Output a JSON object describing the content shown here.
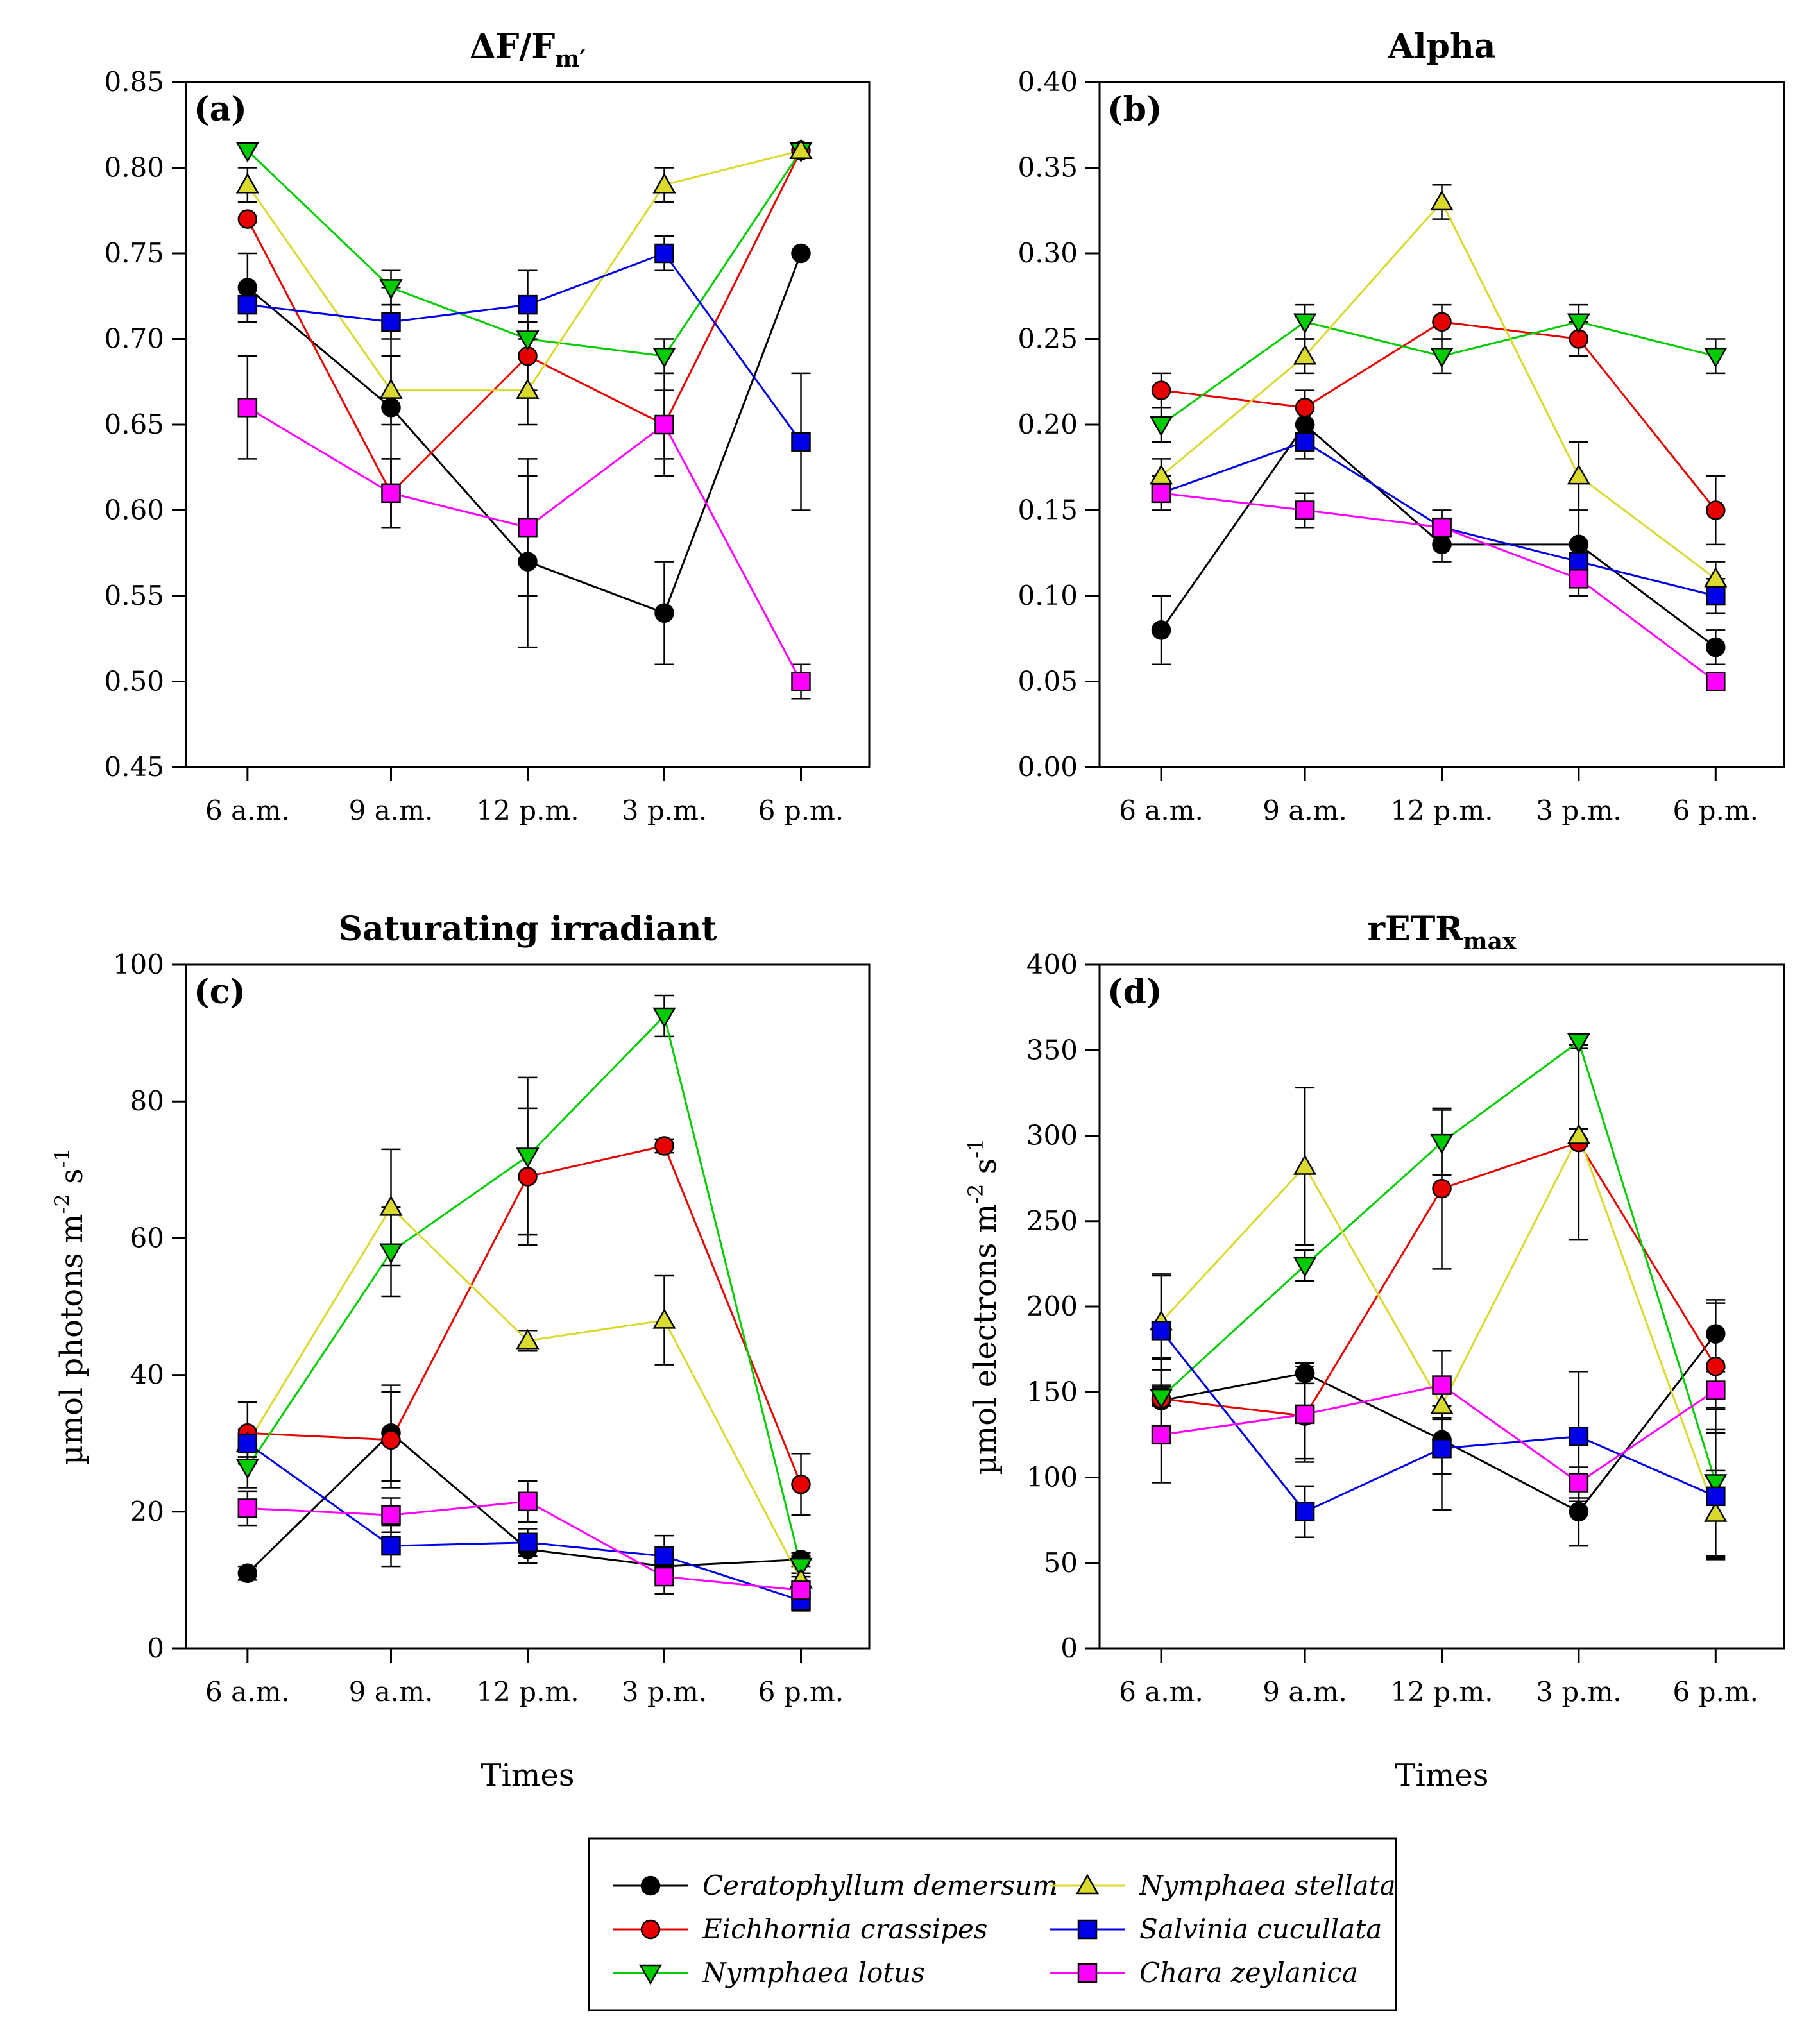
{
  "x_title": "Times",
  "times": [
    "6 a.m.",
    "9 a.m.",
    "12 p.m.",
    "3 p.m.",
    "6 p.m."
  ],
  "species": [
    {
      "name": "Ceratophyllum demersum",
      "color": "#000000",
      "marker": "circle"
    },
    {
      "name": "Eichhornia crassipes",
      "color": "#e60000",
      "marker": "circle"
    },
    {
      "name": "Nymphaea lotus",
      "color": "#00cc00",
      "marker": "triangle-down"
    },
    {
      "name": "Nymphaea stellata",
      "color": "#d9d92e",
      "marker": "triangle-up"
    },
    {
      "name": "Salvinia cucullata",
      "color": "#0000e6",
      "marker": "square"
    },
    {
      "name": "Chara zeylanica",
      "color": "#ff00ff",
      "marker": "square"
    }
  ],
  "chart_data": [
    {
      "type": "line",
      "panel": "(a)",
      "title": "ΔF/F",
      "title_sub": "m′",
      "xlabel": "",
      "ylabel": "",
      "ylabel_sup1": "",
      "ylabel_mid": "",
      "ylabel_sup2": "",
      "ylim": [
        0.45,
        0.85
      ],
      "yticks": [
        "0.45",
        "0.50",
        "0.55",
        "0.60",
        "0.65",
        "0.70",
        "0.75",
        "0.80",
        "0.85"
      ],
      "categories": [
        "6 a.m.",
        "9 a.m.",
        "12 p.m.",
        "3 p.m.",
        "6 p.m."
      ],
      "series": [
        {
          "name": "Ceratophyllum demersum",
          "values": [
            0.73,
            0.66,
            0.57,
            0.54,
            0.75
          ],
          "err": [
            0.02,
            0.07,
            0.05,
            0.03,
            0.0
          ]
        },
        {
          "name": "Eichhornia crassipes",
          "values": [
            0.77,
            0.61,
            0.69,
            0.65,
            0.81
          ],
          "err": [
            0.0,
            0.02,
            0.02,
            0.02,
            0.0
          ]
        },
        {
          "name": "Nymphaea lotus",
          "values": [
            0.81,
            0.73,
            0.7,
            0.69,
            0.81
          ],
          "err": [
            0.0,
            0.01,
            0.01,
            0.01,
            0.0
          ]
        },
        {
          "name": "Nymphaea stellata",
          "values": [
            0.79,
            0.67,
            0.67,
            0.79,
            0.81
          ],
          "err": [
            0.01,
            0.02,
            0.02,
            0.01,
            0.0
          ]
        },
        {
          "name": "Salvinia cucullata",
          "values": [
            0.72,
            0.71,
            0.72,
            0.75,
            0.64
          ],
          "err": [
            0.01,
            0.01,
            0.02,
            0.01,
            0.04
          ]
        },
        {
          "name": "Chara zeylanica",
          "values": [
            0.66,
            0.61,
            0.59,
            0.65,
            0.5
          ],
          "err": [
            0.03,
            0.02,
            0.04,
            0.03,
            0.01
          ]
        }
      ]
    },
    {
      "type": "line",
      "panel": "(b)",
      "title": "Alpha",
      "title_sub": "",
      "xlabel": "",
      "ylabel": "",
      "ylabel_sup1": "",
      "ylabel_mid": "",
      "ylabel_sup2": "",
      "ylim": [
        0.0,
        0.4
      ],
      "yticks": [
        "0.00",
        "0.05",
        "0.10",
        "0.15",
        "0.20",
        "0.25",
        "0.30",
        "0.35",
        "0.40"
      ],
      "categories": [
        "6 a.m.",
        "9 a.m.",
        "12 p.m.",
        "3 p.m.",
        "6 p.m."
      ],
      "series": [
        {
          "name": "Ceratophyllum demersum",
          "values": [
            0.08,
            0.2,
            0.13,
            0.13,
            0.07
          ],
          "err": [
            0.02,
            0.01,
            0.01,
            0.02,
            0.01
          ]
        },
        {
          "name": "Eichhornia crassipes",
          "values": [
            0.22,
            0.21,
            0.26,
            0.25,
            0.15
          ],
          "err": [
            0.01,
            0.01,
            0.01,
            0.01,
            0.02
          ]
        },
        {
          "name": "Nymphaea lotus",
          "values": [
            0.2,
            0.26,
            0.24,
            0.26,
            0.24
          ],
          "err": [
            0.01,
            0.01,
            0.01,
            0.01,
            0.01
          ]
        },
        {
          "name": "Nymphaea stellata",
          "values": [
            0.17,
            0.24,
            0.33,
            0.17,
            0.11
          ],
          "err": [
            0.01,
            0.01,
            0.01,
            0.02,
            0.01
          ]
        },
        {
          "name": "Salvinia cucullata",
          "values": [
            0.16,
            0.19,
            0.14,
            0.12,
            0.1
          ],
          "err": [
            0.01,
            0.01,
            0.01,
            0.01,
            0.01
          ]
        },
        {
          "name": "Chara zeylanica",
          "values": [
            0.16,
            0.15,
            0.14,
            0.11,
            0.05
          ],
          "err": [
            0.01,
            0.01,
            0.01,
            0.01,
            0.0
          ]
        }
      ]
    },
    {
      "type": "line",
      "panel": "(c)",
      "title": "Saturating irradiant",
      "title_sub": "",
      "xlabel": "Times",
      "ylabel": "µmol photons m",
      "ylabel_sup1": "-2",
      "ylabel_mid": " s",
      "ylabel_sup2": "-1",
      "ylim": [
        0,
        100
      ],
      "yticks": [
        "0",
        "20",
        "40",
        "60",
        "80",
        "100"
      ],
      "categories": [
        "6 a.m.",
        "9 a.m.",
        "12 p.m.",
        "3 p.m.",
        "6 p.m."
      ],
      "series": [
        {
          "name": "Ceratophyllum demersum",
          "values": [
            11,
            31.5,
            14.5,
            12,
            13
          ],
          "err": [
            1,
            7,
            2,
            2,
            1
          ]
        },
        {
          "name": "Eichhornia crassipes",
          "values": [
            31.5,
            30.5,
            69,
            73.5,
            24
          ],
          "err": [
            4.5,
            7,
            10,
            1,
            4.5
          ]
        },
        {
          "name": "Nymphaea lotus",
          "values": [
            26.5,
            58,
            72,
            92.5,
            12
          ],
          "err": [
            3,
            6.5,
            11.5,
            3,
            1.5
          ]
        },
        {
          "name": "Nymphaea stellata",
          "values": [
            30,
            64.5,
            45,
            48,
            10
          ],
          "err": [
            2,
            8.5,
            1.5,
            6.5,
            1
          ]
        },
        {
          "name": "Salvinia cucullata",
          "values": [
            30,
            15,
            15.5,
            13.5,
            7
          ],
          "err": [
            2,
            3,
            2,
            3,
            1.5
          ]
        },
        {
          "name": "Chara zeylanica",
          "values": [
            20.5,
            19.5,
            21.5,
            10.5,
            8.5
          ],
          "err": [
            2.5,
            2.5,
            3,
            2.5,
            1
          ]
        }
      ]
    },
    {
      "type": "line",
      "panel": "(d)",
      "title": "rETR",
      "title_sub": "max",
      "xlabel": "Times",
      "ylabel": "µmol electrons m",
      "ylabel_sup1": "-2",
      "ylabel_mid": " s",
      "ylabel_sup2": "-1",
      "ylim": [
        0,
        400
      ],
      "yticks": [
        "0",
        "50",
        "100",
        "150",
        "200",
        "250",
        "300",
        "350",
        "400"
      ],
      "categories": [
        "6 a.m.",
        "9 a.m.",
        "12 p.m.",
        "3 p.m.",
        "6 p.m."
      ],
      "series": [
        {
          "name": "Ceratophyllum demersum",
          "values": [
            145,
            161,
            122,
            80,
            184
          ],
          "err": [
            25,
            6,
            20,
            20,
            20
          ]
        },
        {
          "name": "Eichhornia crassipes",
          "values": [
            146,
            136,
            269,
            296,
            165
          ],
          "err": [
            23,
            25,
            47,
            57,
            37
          ]
        },
        {
          "name": "Nymphaea lotus",
          "values": [
            147,
            224,
            296,
            355,
            97
          ],
          "err": [
            5,
            9,
            19,
            4,
            44
          ]
        },
        {
          "name": "Nymphaea stellata",
          "values": [
            191,
            282,
            142,
            300,
            79
          ],
          "err": [
            28,
            46,
            7,
            4,
            25
          ]
        },
        {
          "name": "Salvinia cucullata",
          "values": [
            186,
            80,
            117,
            124,
            89
          ],
          "err": [
            32,
            15,
            36,
            38,
            37
          ]
        },
        {
          "name": "Chara zeylanica",
          "values": [
            125,
            137,
            154,
            97,
            151
          ],
          "err": [
            28,
            28,
            20,
            9,
            11
          ]
        }
      ]
    }
  ]
}
